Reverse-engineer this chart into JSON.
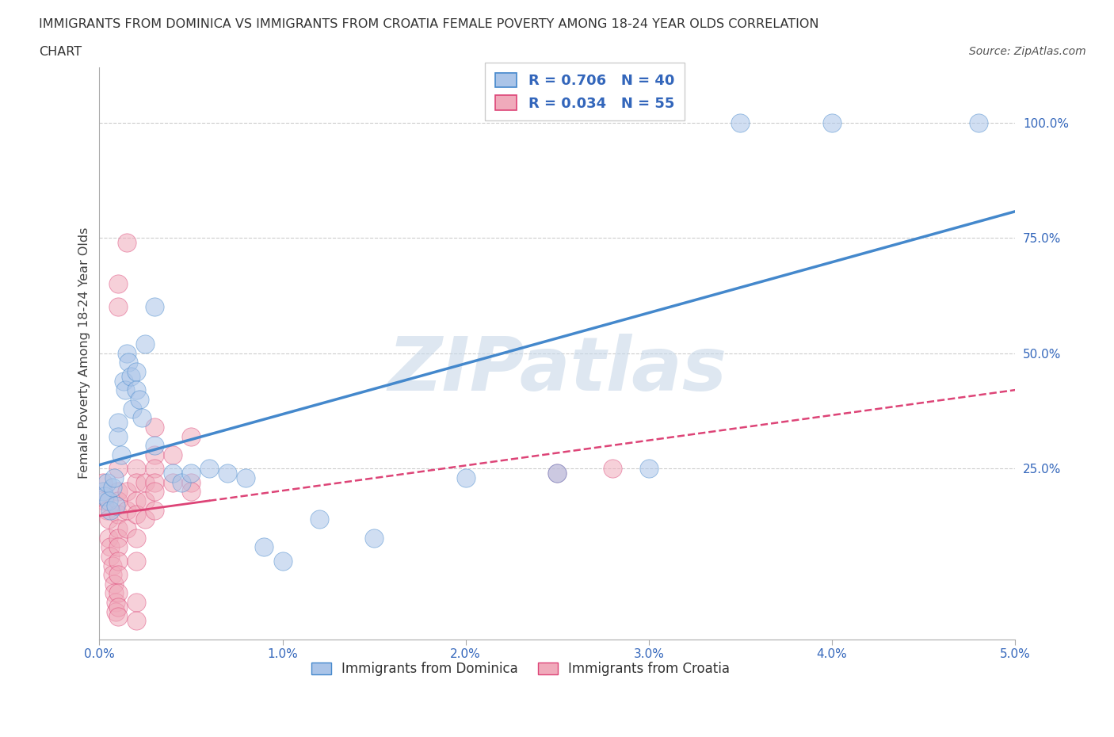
{
  "title_line1": "IMMIGRANTS FROM DOMINICA VS IMMIGRANTS FROM CROATIA FEMALE POVERTY AMONG 18-24 YEAR OLDS CORRELATION",
  "title_line2": "CHART",
  "source": "Source: ZipAtlas.com",
  "ylabel": "Female Poverty Among 18-24 Year Olds",
  "legend_bottom": [
    "Immigrants from Dominica",
    "Immigrants from Croatia"
  ],
  "color_dominica": "#aac4e8",
  "color_croatia": "#f0aabb",
  "line_color_dominica": "#4488cc",
  "line_color_croatia": "#dd4477",
  "R_dominica": 0.706,
  "N_dominica": 40,
  "R_croatia": 0.034,
  "N_croatia": 55,
  "xlim": [
    0.0,
    0.05
  ],
  "ylim": [
    -0.12,
    1.12
  ],
  "xticks": [
    0.0,
    0.01,
    0.02,
    0.03,
    0.04,
    0.05
  ],
  "xtick_labels": [
    "0.0%",
    "1.0%",
    "2.0%",
    "3.0%",
    "4.0%",
    "5.0%"
  ],
  "yticks_right": [
    0.25,
    0.5,
    0.75,
    1.0
  ],
  "ytick_right_labels": [
    "25.0%",
    "50.0%",
    "75.0%",
    "100.0%"
  ],
  "watermark": "ZIPatlas",
  "watermark_color": "#c8d8e8",
  "background_color": "#ffffff",
  "dominica_scatter": [
    [
      0.0002,
      0.2
    ],
    [
      0.0003,
      0.19
    ],
    [
      0.0004,
      0.22
    ],
    [
      0.0005,
      0.18
    ],
    [
      0.0006,
      0.16
    ],
    [
      0.0007,
      0.21
    ],
    [
      0.0008,
      0.23
    ],
    [
      0.0009,
      0.17
    ],
    [
      0.001,
      0.35
    ],
    [
      0.001,
      0.32
    ],
    [
      0.0012,
      0.28
    ],
    [
      0.0013,
      0.44
    ],
    [
      0.0014,
      0.42
    ],
    [
      0.0015,
      0.5
    ],
    [
      0.0016,
      0.48
    ],
    [
      0.0017,
      0.45
    ],
    [
      0.0018,
      0.38
    ],
    [
      0.002,
      0.46
    ],
    [
      0.002,
      0.42
    ],
    [
      0.0022,
      0.4
    ],
    [
      0.0023,
      0.36
    ],
    [
      0.0025,
      0.52
    ],
    [
      0.003,
      0.6
    ],
    [
      0.003,
      0.3
    ],
    [
      0.004,
      0.24
    ],
    [
      0.0045,
      0.22
    ],
    [
      0.005,
      0.24
    ],
    [
      0.006,
      0.25
    ],
    [
      0.007,
      0.24
    ],
    [
      0.008,
      0.23
    ],
    [
      0.009,
      0.08
    ],
    [
      0.01,
      0.05
    ],
    [
      0.012,
      0.14
    ],
    [
      0.015,
      0.1
    ],
    [
      0.02,
      0.23
    ],
    [
      0.025,
      0.24
    ],
    [
      0.03,
      0.25
    ],
    [
      0.035,
      1.0
    ],
    [
      0.04,
      1.0
    ],
    [
      0.048,
      1.0
    ]
  ],
  "croatia_scatter": [
    [
      0.0002,
      0.22
    ],
    [
      0.0003,
      0.18
    ],
    [
      0.0004,
      0.16
    ],
    [
      0.0005,
      0.14
    ],
    [
      0.0005,
      0.1
    ],
    [
      0.0006,
      0.08
    ],
    [
      0.0006,
      0.06
    ],
    [
      0.0007,
      0.04
    ],
    [
      0.0007,
      0.02
    ],
    [
      0.0008,
      0.0
    ],
    [
      0.0008,
      -0.02
    ],
    [
      0.0009,
      -0.04
    ],
    [
      0.0009,
      -0.06
    ],
    [
      0.001,
      0.65
    ],
    [
      0.001,
      0.6
    ],
    [
      0.001,
      0.25
    ],
    [
      0.001,
      0.2
    ],
    [
      0.001,
      0.18
    ],
    [
      0.001,
      0.15
    ],
    [
      0.001,
      0.12
    ],
    [
      0.001,
      0.1
    ],
    [
      0.001,
      0.08
    ],
    [
      0.001,
      0.05
    ],
    [
      0.001,
      0.02
    ],
    [
      0.001,
      -0.02
    ],
    [
      0.001,
      -0.05
    ],
    [
      0.001,
      -0.07
    ],
    [
      0.0015,
      0.74
    ],
    [
      0.0015,
      0.2
    ],
    [
      0.0015,
      0.16
    ],
    [
      0.0015,
      0.12
    ],
    [
      0.002,
      0.25
    ],
    [
      0.002,
      0.22
    ],
    [
      0.002,
      0.18
    ],
    [
      0.002,
      0.15
    ],
    [
      0.002,
      0.1
    ],
    [
      0.002,
      0.05
    ],
    [
      0.002,
      -0.04
    ],
    [
      0.002,
      -0.08
    ],
    [
      0.0025,
      0.22
    ],
    [
      0.0025,
      0.18
    ],
    [
      0.0025,
      0.14
    ],
    [
      0.003,
      0.34
    ],
    [
      0.003,
      0.28
    ],
    [
      0.003,
      0.25
    ],
    [
      0.003,
      0.22
    ],
    [
      0.003,
      0.2
    ],
    [
      0.003,
      0.16
    ],
    [
      0.004,
      0.28
    ],
    [
      0.004,
      0.22
    ],
    [
      0.005,
      0.32
    ],
    [
      0.005,
      0.22
    ],
    [
      0.005,
      0.2
    ],
    [
      0.025,
      0.24
    ],
    [
      0.028,
      0.25
    ]
  ]
}
